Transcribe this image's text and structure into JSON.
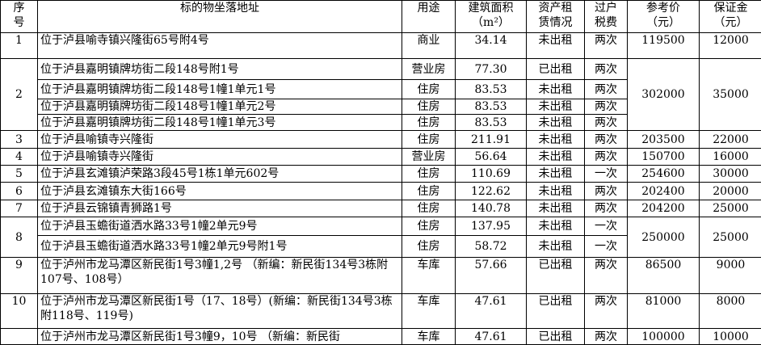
{
  "headers": [
    "序\n号",
    "标的物坐落地址",
    "用途",
    "建筑面积\n（m²）",
    "资产租\n赁情况",
    "过户\n税费",
    "参考价\n（元）",
    "保证金\n（元）"
  ],
  "groups": [
    {
      "seq": "1",
      "price": "119500",
      "deposit": "12000",
      "items": [
        {
          "address": "位于泸县喻寺镇兴隆街65号附4号",
          "use": "商业",
          "area": "34.14",
          "lease": "未出租",
          "tax": "两次"
        }
      ]
    },
    {
      "seq": "2",
      "price": "302000",
      "deposit": "35000",
      "items": [
        {
          "address": "位于泸县嘉明镇牌坊街二段148号附1号",
          "use": "营业房",
          "area": "77.30",
          "lease": "已出租",
          "tax": "两次"
        },
        {
          "address": "位于泸县嘉明镇牌坊街二段148号1幢1单元1号",
          "use": "住房",
          "area": "83.53",
          "lease": "未出租",
          "tax": "两次"
        },
        {
          "address": "位于泸县嘉明镇牌坊街二段148号1幢1单元2号",
          "use": "住房",
          "area": "83.53",
          "lease": "未出租",
          "tax": "两次"
        },
        {
          "address": "位于泸县嘉明镇牌坊街二段148号1幢1单元3号",
          "use": "住房",
          "area": "83.53",
          "lease": "未出租",
          "tax": "两次"
        }
      ]
    },
    {
      "seq": "3",
      "price": "203500",
      "deposit": "22000",
      "items": [
        {
          "address": "位于泸县喻镇寺兴隆街",
          "use": "住房",
          "area": "211.91",
          "lease": "未出租",
          "tax": "两次"
        }
      ]
    },
    {
      "seq": "4",
      "price": "150700",
      "deposit": "16000",
      "items": [
        {
          "address": "位于泸县喻镇寺兴隆街",
          "use": "营业房",
          "area": "56.64",
          "lease": "未出租",
          "tax": "两次"
        }
      ]
    },
    {
      "seq": "5",
      "price": "254600",
      "deposit": "30000",
      "items": [
        {
          "address": "位于泸县玄滩镇泸荣路3段45号1栋1单元602号",
          "use": "住房",
          "area": "110.69",
          "lease": "未出租",
          "tax": "一次"
        }
      ]
    },
    {
      "seq": "6",
      "price": "202400",
      "deposit": "20000",
      "items": [
        {
          "address": "位于泸县玄滩镇东大街166号",
          "use": "住房",
          "area": "122.62",
          "lease": "未出租",
          "tax": "两次"
        }
      ]
    },
    {
      "seq": "7",
      "price": "204200",
      "deposit": "25000",
      "items": [
        {
          "address": "位于泸县云锦镇青狮路1号",
          "use": "住房",
          "area": "140.78",
          "lease": "未出租",
          "tax": "两次"
        }
      ]
    },
    {
      "seq": "8",
      "price": "250000",
      "deposit": "25000",
      "items": [
        {
          "address": "位于泸县玉蟾街道洒水路33号1幢2单元9号",
          "use": "住房",
          "area": "137.95",
          "lease": "未出租",
          "tax": "一次"
        },
        {
          "address": "位于泸县玉蟾街道洒水路33号1幢2单元9号附1号",
          "use": "住房",
          "area": "58.72",
          "lease": "未出租",
          "tax": "一次"
        }
      ]
    },
    {
      "seq": "9",
      "price": "86500",
      "deposit": "9000",
      "items": [
        {
          "address": "位于泸州市龙马潭区新民街1号3幢1,2号 （新编：新民街134号3栋附107号、108号）",
          "use": "车库",
          "area": "57.66",
          "lease": "已出租",
          "tax": "两次"
        }
      ]
    },
    {
      "seq": "10",
      "price": "81000",
      "deposit": "8000",
      "items": [
        {
          "address": "位于泸州市龙马潭区新民街1号（17、18号）(新编：新民街134号3栋附118号、119号)",
          "use": "车库",
          "area": "47.61",
          "lease": "已出租",
          "tax": "两次"
        }
      ]
    },
    {
      "seq": "",
      "price": "100000",
      "deposit": "10000",
      "items": [
        {
          "address": "位于泸州市龙马潭区新民街1号3幢9，10号 （新编：新民街",
          "use": "车库",
          "area": "47.61",
          "lease": "已出租",
          "tax": "两次"
        }
      ]
    }
  ]
}
